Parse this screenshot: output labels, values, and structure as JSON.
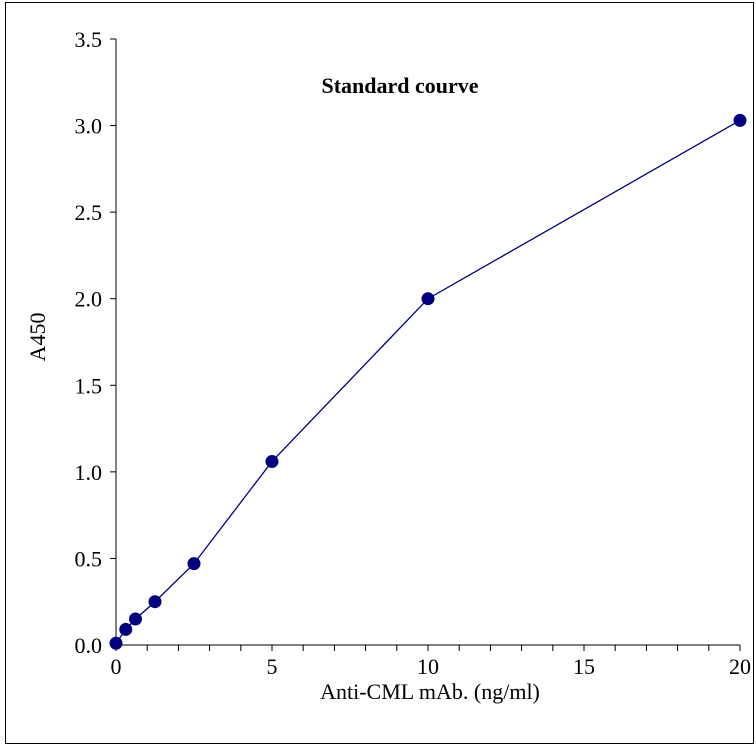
{
  "chart_data": {
    "type": "line",
    "title": "Standard courve",
    "xlabel": "Anti-CML mAb.  (ng/ml)",
    "ylabel": "A450",
    "xlim": [
      0,
      20
    ],
    "ylim": [
      0,
      3.5
    ],
    "x_ticks": [
      "0",
      "5",
      "10",
      "15",
      "20"
    ],
    "y_ticks": [
      "0.0",
      "0.5",
      "1.0",
      "1.5",
      "2.0",
      "2.5",
      "3.0",
      "3.5"
    ],
    "grid": false,
    "series": [
      {
        "x": [
          0,
          0.3125,
          0.625,
          1.25,
          2.5,
          5,
          10,
          20
        ],
        "y": [
          0.01,
          0.09,
          0.15,
          0.25,
          0.47,
          1.06,
          2.0,
          3.03
        ]
      }
    ],
    "colors": {
      "line": "#000080",
      "marker": "#000080",
      "axis": "#000000"
    }
  }
}
